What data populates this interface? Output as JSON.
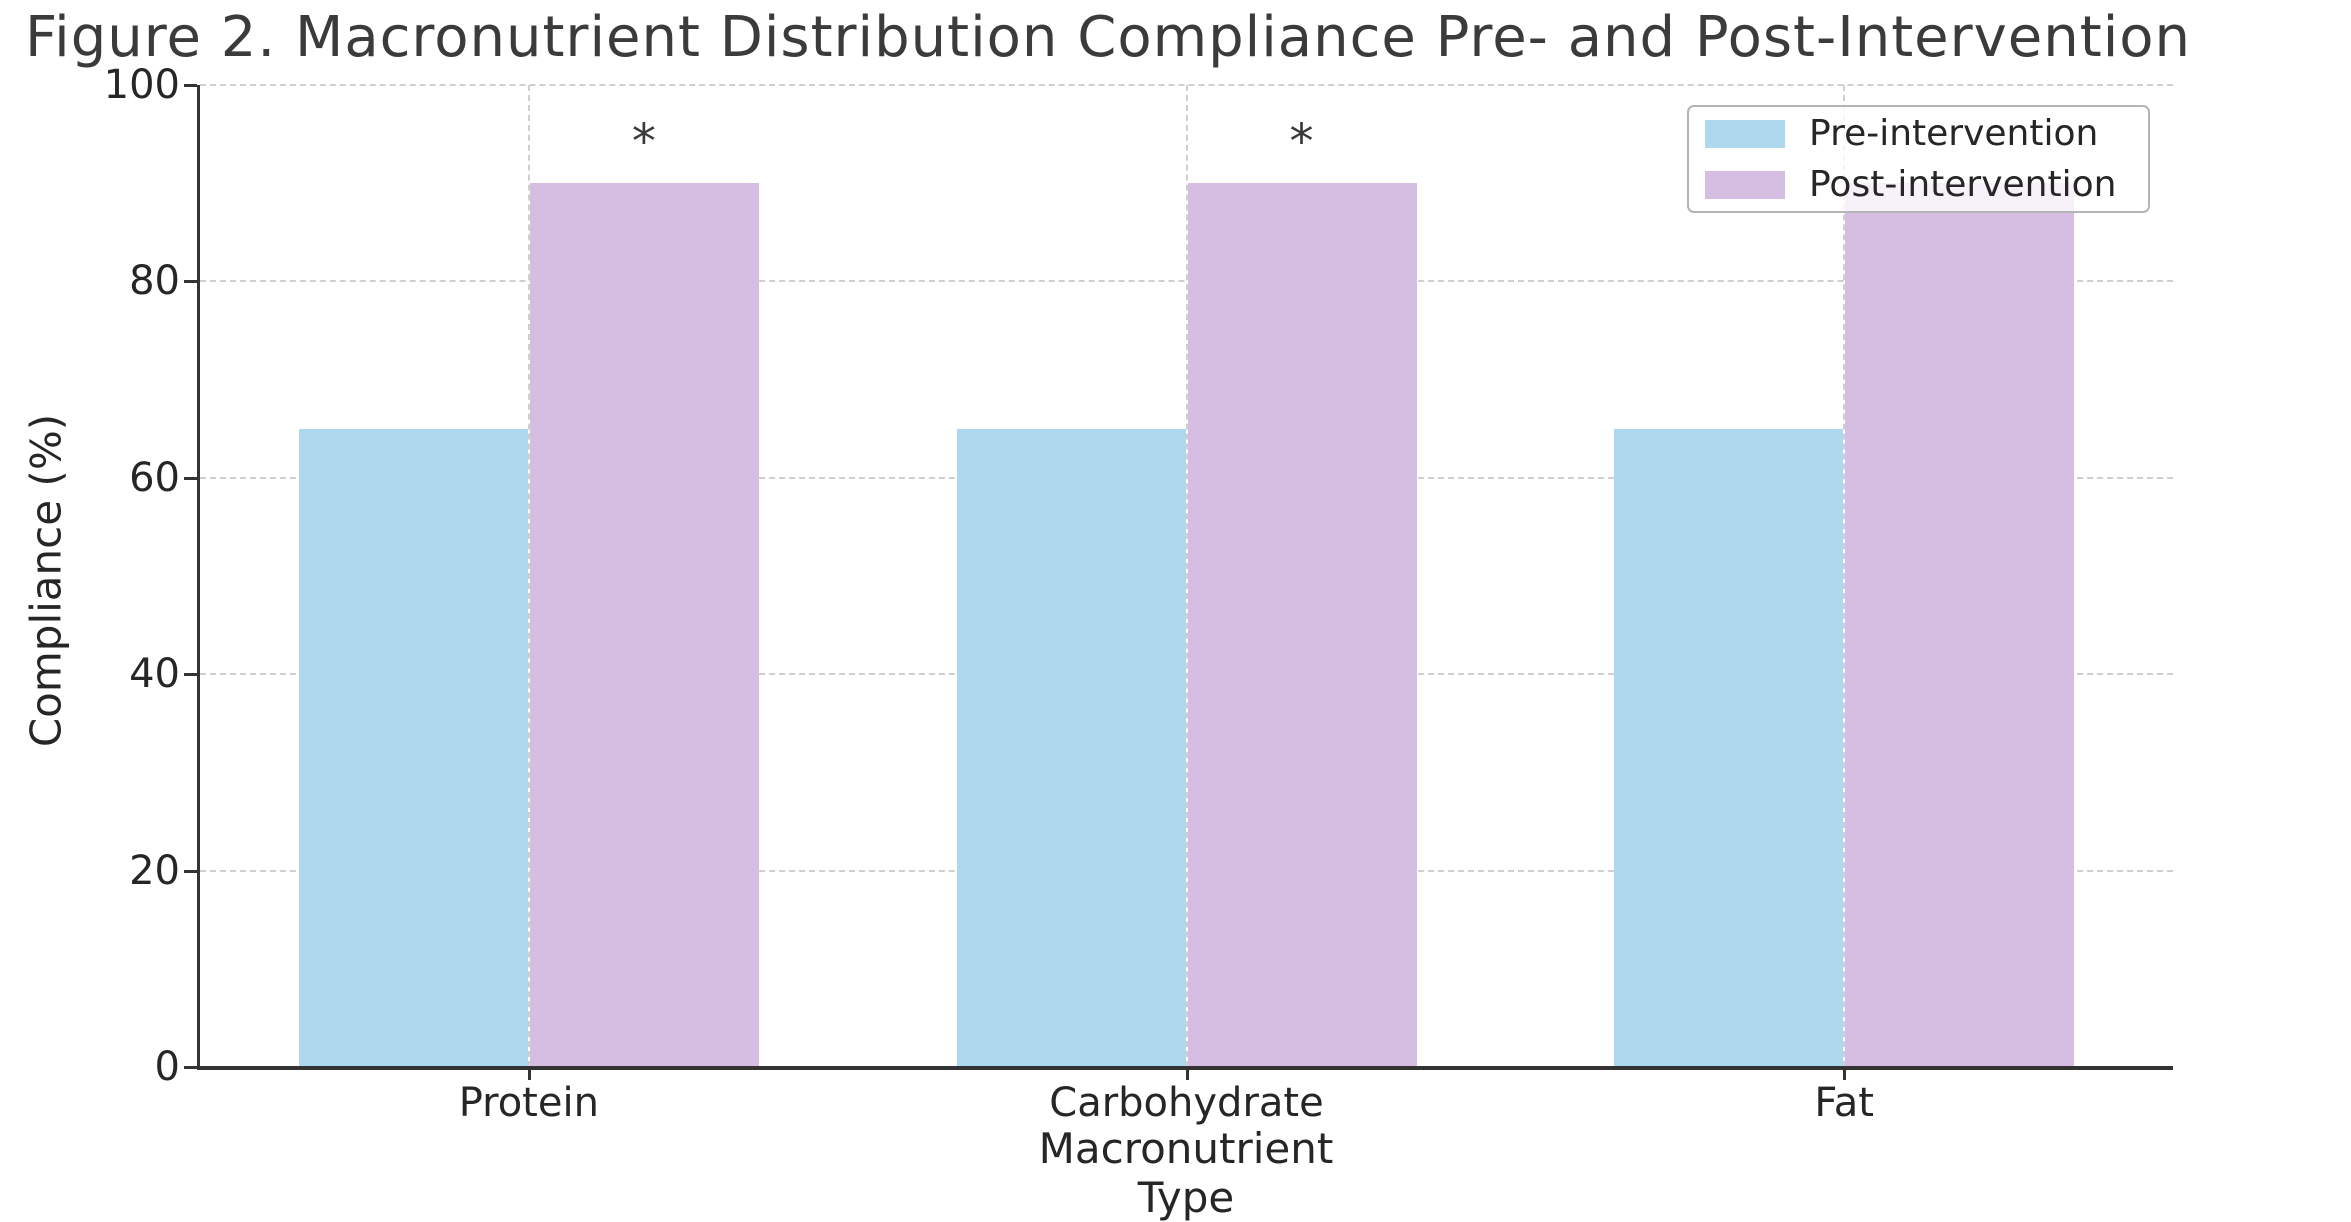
{
  "figure": {
    "background": "#ffffff",
    "title_color": "#3b3b3b"
  },
  "chart_data": {
    "type": "bar",
    "title": "Figure 2. Macronutrient Distribution Compliance Pre- and Post-Intervention",
    "xlabel": "Macronutrient Type",
    "ylabel": "Compliance (%)",
    "categories": [
      "Protein",
      "Carbohydrate",
      "Fat"
    ],
    "series": [
      {
        "name": "Pre-intervention",
        "color": "#add8ee",
        "values": [
          65,
          65,
          65
        ]
      },
      {
        "name": "Post-intervention",
        "color": "#d6bee3",
        "values": [
          90,
          90,
          90
        ]
      }
    ],
    "annotations": [
      {
        "text": "*",
        "category": "Protein",
        "series": "Post-intervention",
        "y": 95
      },
      {
        "text": "*",
        "category": "Carbohydrate",
        "series": "Post-intervention",
        "y": 95
      }
    ],
    "ylim": [
      0,
      100
    ],
    "yticks": [
      0,
      20,
      40,
      60,
      80,
      100
    ],
    "grid": "both",
    "grid_style": "dashed",
    "grid_color": "#cfcfcf",
    "axis_color": "#333333",
    "text_color": "#262626",
    "legend": {
      "position": "upper right",
      "entries": [
        "Pre-intervention",
        "Post-intervention"
      ]
    }
  }
}
